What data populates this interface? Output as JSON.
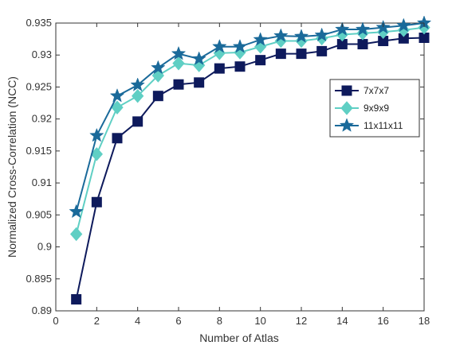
{
  "chart_data": {
    "type": "line",
    "title": "",
    "xlabel": "Number of Atlas",
    "ylabel": "Normalized Cross-Correlation (NCC)",
    "xlim": [
      0,
      18
    ],
    "ylim": [
      0.89,
      0.935
    ],
    "xticks": [
      0,
      2,
      4,
      6,
      8,
      10,
      12,
      14,
      16,
      18
    ],
    "yticks": [
      0.89,
      0.895,
      0.9,
      0.905,
      0.91,
      0.915,
      0.92,
      0.925,
      0.93,
      0.935
    ],
    "ytick_labels": [
      "0.89",
      "0.895",
      "0.9",
      "0.905",
      "0.91",
      "0.915",
      "0.92",
      "0.925",
      "0.93",
      "0.935"
    ],
    "grid": false,
    "legend_position": "right",
    "x": [
      1,
      2,
      3,
      4,
      5,
      6,
      7,
      8,
      9,
      10,
      11,
      12,
      13,
      14,
      15,
      16,
      17,
      18
    ],
    "series": [
      {
        "name": "7x7x7",
        "marker": "square",
        "color": "#0e1a5c",
        "values": [
          0.8918,
          0.907,
          0.917,
          0.9196,
          0.9236,
          0.9254,
          0.9257,
          0.9279,
          0.9282,
          0.9292,
          0.9302,
          0.9302,
          0.9306,
          0.9317,
          0.9317,
          0.9322,
          0.9326,
          0.9327
        ]
      },
      {
        "name": "9x9x9",
        "marker": "diamond",
        "color": "#5fcfc4",
        "values": [
          0.902,
          0.9145,
          0.9218,
          0.9236,
          0.9268,
          0.9287,
          0.9284,
          0.9303,
          0.9304,
          0.9313,
          0.9322,
          0.9322,
          0.9326,
          0.9332,
          0.9334,
          0.9336,
          0.9339,
          0.9343
        ]
      },
      {
        "name": "11x11x11",
        "marker": "star",
        "color": "#1a6a9a",
        "values": [
          0.9055,
          0.9174,
          0.9236,
          0.9253,
          0.928,
          0.9302,
          0.9294,
          0.9313,
          0.9313,
          0.9324,
          0.933,
          0.9329,
          0.9331,
          0.934,
          0.934,
          0.9343,
          0.9346,
          0.935
        ]
      }
    ]
  }
}
